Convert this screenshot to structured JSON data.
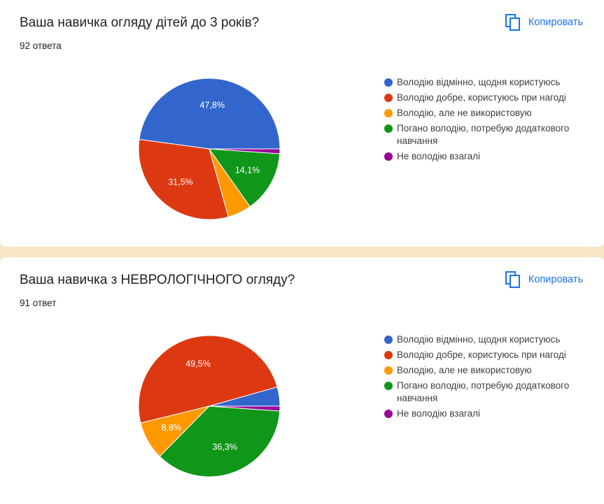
{
  "cards": [
    {
      "title": "Ваша навичка огляду дітей до 3 років?",
      "count": "92 ответа",
      "copy_label": "Копировать",
      "copy_icon": "copy-icon"
    },
    {
      "title": "Ваша навичка з НЕВРОЛОГІЧНОГО огляду?",
      "count": "91 ответ",
      "copy_label": "Копировать",
      "copy_icon": "copy-icon"
    }
  ],
  "chart_data": [
    {
      "type": "pie",
      "legend_position": "right",
      "categories": [
        "Володію відмінно, щодня користуюсь",
        "Володію добре, користуюсь при нагоді",
        "Володію, але не використовую",
        "Погано володію, потребую додаткового навчання",
        "Не володію взагалі"
      ],
      "values": [
        47.8,
        31.5,
        5.4,
        14.1,
        1.1
      ],
      "value_labels": [
        "47,8%",
        "31,5%",
        "",
        "14,1%",
        ""
      ],
      "colors": [
        "#3366cc",
        "#dc3912",
        "#ff9900",
        "#109618",
        "#990099"
      ]
    },
    {
      "type": "pie",
      "legend_position": "right",
      "categories": [
        "Володію відмінно, щодня користуюсь",
        "Володію добре, користуюсь при нагоді",
        "Володію, але не використовую",
        "Погано володію, потребую додаткового навчання",
        "Не володію взагалі"
      ],
      "values": [
        4.4,
        49.5,
        8.8,
        36.3,
        1.1
      ],
      "value_labels": [
        "",
        "49,5%",
        "8,8%",
        "36,3%",
        ""
      ],
      "colors": [
        "#3366cc",
        "#dc3912",
        "#ff9900",
        "#109618",
        "#990099"
      ]
    }
  ]
}
